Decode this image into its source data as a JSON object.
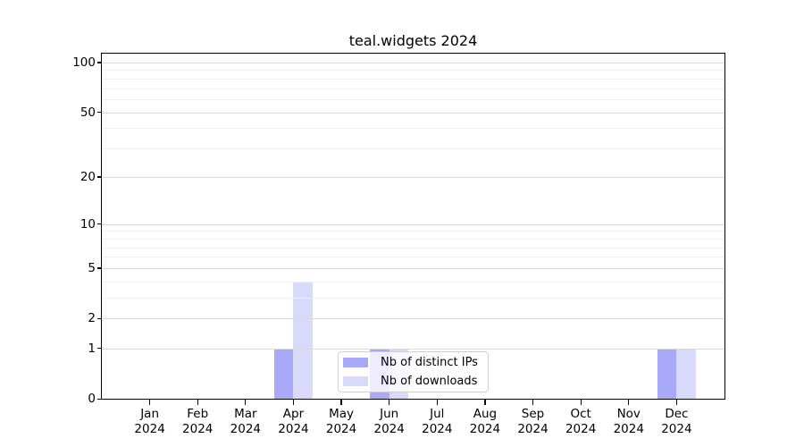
{
  "chart_data": {
    "type": "bar",
    "title": "teal.widgets 2024",
    "year": "2024",
    "categories": [
      "Jan",
      "Feb",
      "Mar",
      "Apr",
      "May",
      "Jun",
      "Jul",
      "Aug",
      "Sep",
      "Oct",
      "Nov",
      "Dec"
    ],
    "series": [
      {
        "name": "Nb of distinct IPs",
        "color": "#a8aaf9",
        "values": [
          0,
          0,
          0,
          1,
          0,
          1,
          0,
          0,
          0,
          0,
          0,
          1
        ]
      },
      {
        "name": "Nb of downloads",
        "color": "#d8dafb",
        "values": [
          0,
          0,
          0,
          4,
          0,
          1,
          0,
          0,
          0,
          0,
          0,
          1
        ]
      }
    ],
    "y_axis": {
      "scale": "log10(1+x)",
      "ticks": [
        0,
        1,
        2,
        5,
        10,
        20,
        50,
        100
      ],
      "minor_ticks": [
        3,
        4,
        6,
        7,
        8,
        9,
        30,
        40,
        60,
        70,
        80,
        90
      ],
      "ylim": [
        0,
        113
      ]
    },
    "x_axis": {
      "label_line2": "2024"
    },
    "legend": {
      "entries": [
        "Nb of distinct IPs",
        "Nb of downloads"
      ],
      "position": "lower-center-inside"
    },
    "grid": "on",
    "colors": {
      "grid_major": "#d9d9d9",
      "grid_minor": "#efefef",
      "axis_frame": "#000000",
      "legend_border": "#d0d0d0",
      "background": "#ffffff"
    }
  }
}
